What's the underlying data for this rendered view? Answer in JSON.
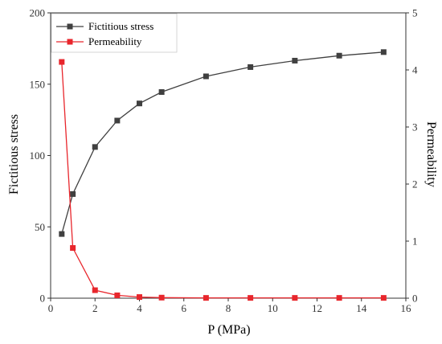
{
  "chart_data": {
    "type": "line",
    "xlabel": "P (MPa)",
    "ylabel_left": "Fictitious stress",
    "ylabel_right": "Permeability",
    "xlim": [
      0,
      16
    ],
    "ylim_left": [
      0,
      200
    ],
    "ylim_right": [
      0,
      5
    ],
    "x_ticks": [
      0,
      2,
      4,
      6,
      8,
      10,
      12,
      14,
      16
    ],
    "y_left_ticks": [
      0,
      50,
      100,
      150,
      200
    ],
    "y_right_ticks": [
      0,
      1,
      2,
      3,
      4,
      5
    ],
    "grid": false,
    "legend_position": "top-left",
    "series": [
      {
        "name": "Fictitious stress",
        "axis": "left",
        "color": "#404040",
        "marker": "square",
        "x": [
          0.5,
          1,
          2,
          3,
          4,
          5,
          7,
          9,
          11,
          13,
          15
        ],
        "y": [
          45,
          73,
          106,
          124.5,
          136.5,
          144.5,
          155.5,
          162,
          166.5,
          170,
          172.5
        ]
      },
      {
        "name": "Permeability",
        "axis": "right",
        "color": "#e8262c",
        "marker": "square",
        "x": [
          0.5,
          1,
          2,
          3,
          4,
          5,
          7,
          9,
          11,
          13,
          15
        ],
        "y": [
          4.14,
          0.88,
          0.14,
          0.05,
          0.02,
          0.01,
          0.005,
          0.005,
          0.005,
          0.005,
          0.005
        ]
      }
    ]
  }
}
